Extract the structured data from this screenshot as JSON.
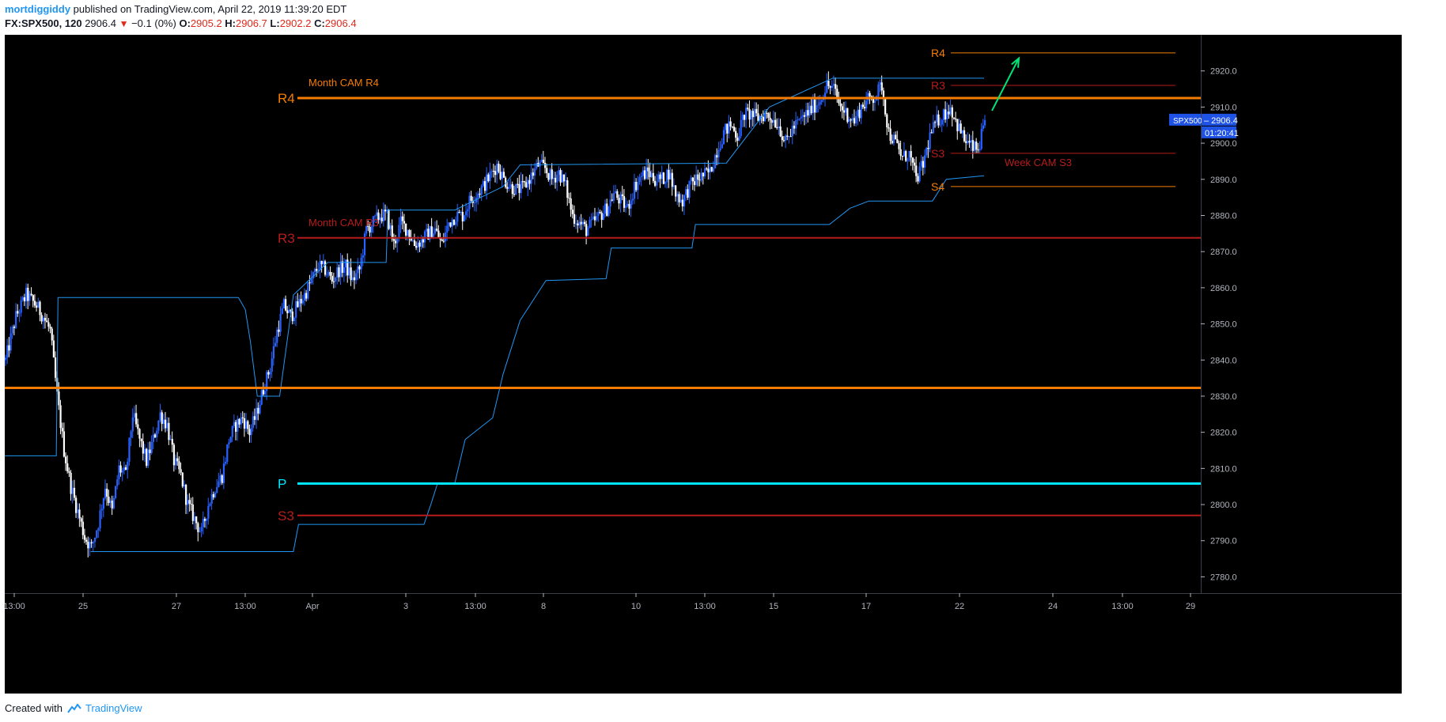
{
  "header": {
    "author": "mortdiggiddy",
    "published_text": "published on TradingView.com, April 22, 2019 11:39:20 EDT",
    "symbol": "FX:SPX500, 120",
    "last": "2906.4",
    "change": "−0.1 (0%)",
    "o_label": "O:",
    "o_value": "2905.2",
    "h_label": "H:",
    "h_value": "2906.7",
    "l_label": "L:",
    "l_value": "2902.2",
    "c_label": "C:",
    "c_value": "2906.4"
  },
  "footer": {
    "created_with": "Created with",
    "brand": "TradingView"
  },
  "colors": {
    "background": "#000000",
    "bull": "#2962ff",
    "bear": "#ffffff",
    "orange": "#f57c00",
    "red": "#b71c1c",
    "cyan": "#00e5ff",
    "blue_line": "#2196f3",
    "arrow": "#00e676",
    "axis_text": "#b2b5be"
  },
  "chart_data": {
    "type": "candlestick",
    "symbol": "SPX500",
    "ylim": [
      2775.5,
      2930
    ],
    "y_ticks": [
      2780,
      2790,
      2800,
      2810,
      2820,
      2830,
      2840,
      2850,
      2860,
      2870,
      2880,
      2890,
      2900,
      2910,
      2920
    ],
    "x_ticks": [
      "13:00",
      "25",
      "27",
      "13:00",
      "Apr",
      "3",
      "13:00",
      "8",
      "10",
      "13:00",
      "15",
      "17",
      "22",
      "24",
      "13:00",
      "29"
    ],
    "price_label": {
      "symbol": "SPX500",
      "value": "2906.4",
      "countdown": "01:20:41"
    },
    "levels": [
      {
        "label": "R4",
        "value": 2912.5,
        "color": "orange",
        "note": "Month CAM R4",
        "style": "thick"
      },
      {
        "label": "R3",
        "value": 2873.8,
        "color": "red",
        "note": "Month CAM R3",
        "style": "medium"
      },
      {
        "label": "",
        "value": 2832.3,
        "color": "orange",
        "note": "",
        "style": "thick"
      },
      {
        "label": "P",
        "value": 2805.8,
        "color": "cyan",
        "note": "",
        "style": "thick"
      },
      {
        "label": "S3",
        "value": 2797.0,
        "color": "red",
        "note": "",
        "style": "medium"
      }
    ],
    "week_levels": [
      {
        "label": "R4",
        "value": 2925.0,
        "color": "orange"
      },
      {
        "label": "R3",
        "value": 2916.0,
        "color": "red"
      },
      {
        "label": "S3",
        "value": 2897.2,
        "color": "red",
        "note": "Week CAM S3"
      },
      {
        "label": "S4",
        "value": 2888.0,
        "color": "orange"
      }
    ],
    "anchors": [
      {
        "x": 0,
        "p": 2840
      },
      {
        "x": 6,
        "p": 2852
      },
      {
        "x": 12,
        "p": 2858
      },
      {
        "x": 18,
        "p": 2855
      },
      {
        "x": 22,
        "p": 2852
      },
      {
        "x": 26,
        "p": 2848
      },
      {
        "x": 30,
        "p": 2830
      },
      {
        "x": 34,
        "p": 2815
      },
      {
        "x": 38,
        "p": 2805
      },
      {
        "x": 42,
        "p": 2798
      },
      {
        "x": 46,
        "p": 2791
      },
      {
        "x": 50,
        "p": 2788
      },
      {
        "x": 54,
        "p": 2795
      },
      {
        "x": 58,
        "p": 2805
      },
      {
        "x": 62,
        "p": 2798
      },
      {
        "x": 66,
        "p": 2810
      },
      {
        "x": 70,
        "p": 2808
      },
      {
        "x": 74,
        "p": 2825
      },
      {
        "x": 78,
        "p": 2818
      },
      {
        "x": 82,
        "p": 2812
      },
      {
        "x": 86,
        "p": 2818
      },
      {
        "x": 90,
        "p": 2825
      },
      {
        "x": 94,
        "p": 2822
      },
      {
        "x": 98,
        "p": 2812
      },
      {
        "x": 102,
        "p": 2808
      },
      {
        "x": 106,
        "p": 2800
      },
      {
        "x": 110,
        "p": 2796
      },
      {
        "x": 114,
        "p": 2792
      },
      {
        "x": 118,
        "p": 2800
      },
      {
        "x": 122,
        "p": 2805
      },
      {
        "x": 126,
        "p": 2808
      },
      {
        "x": 130,
        "p": 2818
      },
      {
        "x": 134,
        "p": 2822
      },
      {
        "x": 138,
        "p": 2824
      },
      {
        "x": 142,
        "p": 2820
      },
      {
        "x": 146,
        "p": 2825
      },
      {
        "x": 150,
        "p": 2832
      },
      {
        "x": 154,
        "p": 2838
      },
      {
        "x": 158,
        "p": 2848
      },
      {
        "x": 162,
        "p": 2855
      },
      {
        "x": 166,
        "p": 2852
      },
      {
        "x": 170,
        "p": 2855
      },
      {
        "x": 174,
        "p": 2858
      },
      {
        "x": 178,
        "p": 2862
      },
      {
        "x": 182,
        "p": 2866
      },
      {
        "x": 186,
        "p": 2865
      },
      {
        "x": 190,
        "p": 2862
      },
      {
        "x": 194,
        "p": 2865
      },
      {
        "x": 198,
        "p": 2866
      },
      {
        "x": 202,
        "p": 2862
      },
      {
        "x": 206,
        "p": 2865
      },
      {
        "x": 210,
        "p": 2876
      },
      {
        "x": 214,
        "p": 2878
      },
      {
        "x": 218,
        "p": 2880
      },
      {
        "x": 222,
        "p": 2880
      },
      {
        "x": 226,
        "p": 2872
      },
      {
        "x": 230,
        "p": 2878
      },
      {
        "x": 234,
        "p": 2876
      },
      {
        "x": 238,
        "p": 2872
      },
      {
        "x": 242,
        "p": 2873
      },
      {
        "x": 246,
        "p": 2875
      },
      {
        "x": 250,
        "p": 2876
      },
      {
        "x": 254,
        "p": 2872
      },
      {
        "x": 258,
        "p": 2878
      },
      {
        "x": 262,
        "p": 2880
      },
      {
        "x": 266,
        "p": 2880
      },
      {
        "x": 270,
        "p": 2884
      },
      {
        "x": 274,
        "p": 2886
      },
      {
        "x": 278,
        "p": 2888
      },
      {
        "x": 282,
        "p": 2891
      },
      {
        "x": 286,
        "p": 2894
      },
      {
        "x": 290,
        "p": 2890
      },
      {
        "x": 294,
        "p": 2888
      },
      {
        "x": 298,
        "p": 2887
      },
      {
        "x": 302,
        "p": 2888
      },
      {
        "x": 306,
        "p": 2891
      },
      {
        "x": 310,
        "p": 2894
      },
      {
        "x": 314,
        "p": 2893
      },
      {
        "x": 318,
        "p": 2890
      },
      {
        "x": 322,
        "p": 2892
      },
      {
        "x": 326,
        "p": 2888
      },
      {
        "x": 330,
        "p": 2880
      },
      {
        "x": 334,
        "p": 2878
      },
      {
        "x": 338,
        "p": 2876
      },
      {
        "x": 342,
        "p": 2878
      },
      {
        "x": 346,
        "p": 2880
      },
      {
        "x": 350,
        "p": 2882
      },
      {
        "x": 354,
        "p": 2886
      },
      {
        "x": 358,
        "p": 2884
      },
      {
        "x": 362,
        "p": 2882
      },
      {
        "x": 366,
        "p": 2888
      },
      {
        "x": 370,
        "p": 2891
      },
      {
        "x": 374,
        "p": 2892
      },
      {
        "x": 378,
        "p": 2890
      },
      {
        "x": 382,
        "p": 2890
      },
      {
        "x": 386,
        "p": 2892
      },
      {
        "x": 390,
        "p": 2886
      },
      {
        "x": 394,
        "p": 2884
      },
      {
        "x": 398,
        "p": 2888
      },
      {
        "x": 402,
        "p": 2890
      },
      {
        "x": 406,
        "p": 2891
      },
      {
        "x": 410,
        "p": 2892
      },
      {
        "x": 414,
        "p": 2898
      },
      {
        "x": 418,
        "p": 2903
      },
      {
        "x": 422,
        "p": 2905
      },
      {
        "x": 426,
        "p": 2902
      },
      {
        "x": 430,
        "p": 2908
      },
      {
        "x": 434,
        "p": 2908
      },
      {
        "x": 438,
        "p": 2907
      },
      {
        "x": 442,
        "p": 2908
      },
      {
        "x": 446,
        "p": 2907
      },
      {
        "x": 450,
        "p": 2905
      },
      {
        "x": 454,
        "p": 2900
      },
      {
        "x": 458,
        "p": 2904
      },
      {
        "x": 462,
        "p": 2906
      },
      {
        "x": 466,
        "p": 2908
      },
      {
        "x": 470,
        "p": 2910
      },
      {
        "x": 474,
        "p": 2912
      },
      {
        "x": 478,
        "p": 2916
      },
      {
        "x": 482,
        "p": 2915
      },
      {
        "x": 486,
        "p": 2910
      },
      {
        "x": 490,
        "p": 2908
      },
      {
        "x": 494,
        "p": 2906
      },
      {
        "x": 498,
        "p": 2910
      },
      {
        "x": 502,
        "p": 2912
      },
      {
        "x": 506,
        "p": 2913
      },
      {
        "x": 510,
        "p": 2916
      },
      {
        "x": 514,
        "p": 2903
      },
      {
        "x": 518,
        "p": 2900
      },
      {
        "x": 522,
        "p": 2896
      },
      {
        "x": 526,
        "p": 2897
      },
      {
        "x": 530,
        "p": 2890
      },
      {
        "x": 534,
        "p": 2894
      },
      {
        "x": 538,
        "p": 2902
      },
      {
        "x": 542,
        "p": 2906
      },
      {
        "x": 546,
        "p": 2908
      },
      {
        "x": 550,
        "p": 2910
      },
      {
        "x": 554,
        "p": 2905
      },
      {
        "x": 558,
        "p": 2901
      },
      {
        "x": 562,
        "p": 2899
      },
      {
        "x": 566,
        "p": 2898
      },
      {
        "x": 570,
        "p": 2906
      }
    ],
    "upper_band": [
      {
        "x": 0,
        "p": 2813.5
      },
      {
        "x": 30,
        "p": 2813.5
      },
      {
        "x": 31,
        "p": 2857.3
      },
      {
        "x": 136,
        "p": 2857.3
      },
      {
        "x": 140,
        "p": 2854
      },
      {
        "x": 143,
        "p": 2845
      },
      {
        "x": 147,
        "p": 2830
      },
      {
        "x": 160,
        "p": 2830
      },
      {
        "x": 168,
        "p": 2858
      },
      {
        "x": 188,
        "p": 2867
      },
      {
        "x": 222,
        "p": 2867
      },
      {
        "x": 223,
        "p": 2881.5
      },
      {
        "x": 262,
        "p": 2881.5
      },
      {
        "x": 290,
        "p": 2888
      },
      {
        "x": 300,
        "p": 2894
      },
      {
        "x": 420,
        "p": 2894.5
      },
      {
        "x": 445,
        "p": 2910
      },
      {
        "x": 482,
        "p": 2918
      },
      {
        "x": 570,
        "p": 2918
      }
    ],
    "lower_band": [
      {
        "x": 50,
        "p": 2787
      },
      {
        "x": 168,
        "p": 2787
      },
      {
        "x": 171,
        "p": 2794.5
      },
      {
        "x": 244,
        "p": 2794.5
      },
      {
        "x": 248,
        "p": 2800
      },
      {
        "x": 252,
        "p": 2806
      },
      {
        "x": 262,
        "p": 2806
      },
      {
        "x": 268,
        "p": 2818
      },
      {
        "x": 284,
        "p": 2824
      },
      {
        "x": 290,
        "p": 2836
      },
      {
        "x": 300,
        "p": 2851
      },
      {
        "x": 315,
        "p": 2862
      },
      {
        "x": 350,
        "p": 2862.5
      },
      {
        "x": 353,
        "p": 2871
      },
      {
        "x": 400,
        "p": 2871
      },
      {
        "x": 402,
        "p": 2877.5
      },
      {
        "x": 480,
        "p": 2877.5
      },
      {
        "x": 492,
        "p": 2882
      },
      {
        "x": 503,
        "p": 2884
      },
      {
        "x": 540,
        "p": 2884
      },
      {
        "x": 548,
        "p": 2890
      },
      {
        "x": 570,
        "p": 2891
      }
    ],
    "last_price": 2906.4
  }
}
